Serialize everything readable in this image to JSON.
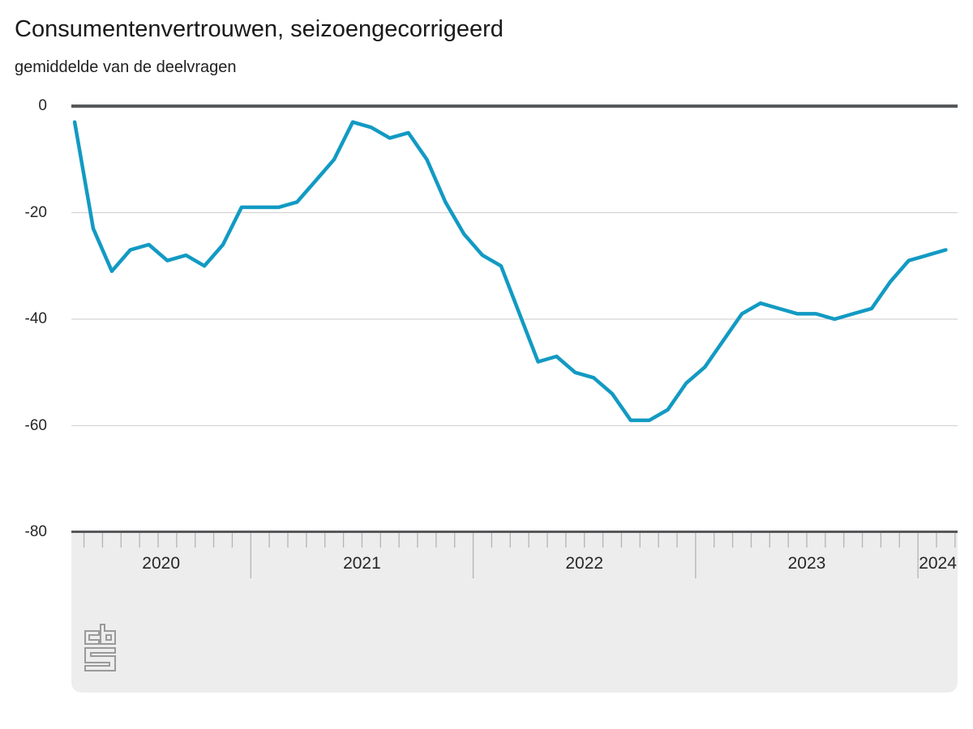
{
  "header": {
    "title": "Consumentenvertrouwen, seizoengecorrigeerd",
    "subtitle": "gemiddelde van de deelvragen"
  },
  "chart_data": {
    "type": "line",
    "title": "Consumentenvertrouwen, seizoengecorrigeerd",
    "subtitle": "gemiddelde van de deelvragen",
    "series_name": "Consumentenvertrouwen",
    "frequency": "monthly",
    "x_start": "2020-03",
    "x_end": "2024-02",
    "x": [
      "2020-03",
      "2020-04",
      "2020-05",
      "2020-06",
      "2020-07",
      "2020-08",
      "2020-09",
      "2020-10",
      "2020-11",
      "2020-12",
      "2021-01",
      "2021-02",
      "2021-03",
      "2021-04",
      "2021-05",
      "2021-06",
      "2021-07",
      "2021-08",
      "2021-09",
      "2021-10",
      "2021-11",
      "2021-12",
      "2022-01",
      "2022-02",
      "2022-03",
      "2022-04",
      "2022-05",
      "2022-06",
      "2022-07",
      "2022-08",
      "2022-09",
      "2022-10",
      "2022-11",
      "2022-12",
      "2023-01",
      "2023-02",
      "2023-03",
      "2023-04",
      "2023-05",
      "2023-06",
      "2023-07",
      "2023-08",
      "2023-09",
      "2023-10",
      "2023-11",
      "2023-12",
      "2024-01",
      "2024-02"
    ],
    "values": [
      -3,
      -23,
      -31,
      -27,
      -26,
      -29,
      -28,
      -30,
      -26,
      -19,
      -19,
      -19,
      -18,
      -14,
      -10,
      -3,
      -4,
      -6,
      -5,
      -10,
      -18,
      -24,
      -28,
      -30,
      -39,
      -48,
      -47,
      -50,
      -51,
      -54,
      -59,
      -59,
      -57,
      -52,
      -49,
      -44,
      -39,
      -37,
      -38,
      -39,
      -39,
      -40,
      -39,
      -38,
      -33,
      -29,
      -28,
      -27
    ],
    "ylim": [
      -80,
      0
    ],
    "yticks": [
      0,
      -20,
      -40,
      -60,
      -80
    ],
    "ytick_labels": [
      "0",
      "-20",
      "-40",
      "-60",
      "-80"
    ],
    "year_labels": [
      "2020",
      "2021",
      "2022",
      "2023",
      "2024"
    ],
    "grid": "horizontal",
    "legend": "none",
    "colors": {
      "line": "#129ac3",
      "grid": "#d4d4d4",
      "axis": "#57585a",
      "band": "#ededed",
      "tick": "#b4b4b4",
      "text": "#262626",
      "logo": "#9a9a9a"
    }
  },
  "footer": {
    "logo": "cbs-logo"
  }
}
